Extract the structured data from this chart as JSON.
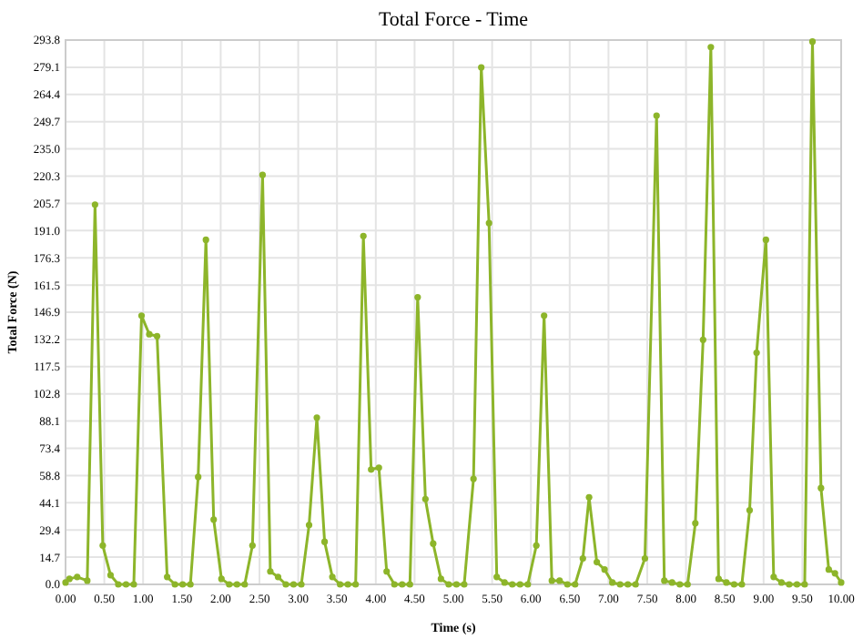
{
  "chart_data": {
    "type": "line",
    "title": "Total Force - Time",
    "xlabel": "Time (s)",
    "ylabel": "Total Force (N)",
    "x": [
      0,
      0.05,
      0.15,
      0.28,
      0.38,
      0.48,
      0.58,
      0.68,
      0.78,
      0.88,
      0.98,
      1.08,
      1.18,
      1.31,
      1.41,
      1.51,
      1.61,
      1.71,
      1.81,
      1.91,
      2.01,
      2.11,
      2.21,
      2.31,
      2.41,
      2.54,
      2.64,
      2.74,
      2.84,
      2.94,
      3.04,
      3.14,
      3.24,
      3.34,
      3.44,
      3.54,
      3.64,
      3.74,
      3.84,
      3.94,
      4.04,
      4.14,
      4.24,
      4.34,
      4.44,
      4.54,
      4.64,
      4.74,
      4.84,
      4.94,
      5.04,
      5.14,
      5.26,
      5.36,
      5.46,
      5.56,
      5.66,
      5.76,
      5.86,
      5.96,
      6.07,
      6.17,
      6.27,
      6.37,
      6.47,
      6.57,
      6.67,
      6.75,
      6.85,
      6.95,
      7.05,
      7.15,
      7.25,
      7.35,
      7.47,
      7.62,
      7.72,
      7.82,
      7.92,
      8.02,
      8.12,
      8.22,
      8.32,
      8.42,
      8.52,
      8.62,
      8.72,
      8.82,
      8.91,
      9.03,
      9.13,
      9.23,
      9.33,
      9.43,
      9.53,
      9.63,
      9.74,
      9.84,
      9.92,
      10
    ],
    "series": [
      {
        "color": "#8db52a",
        "values": [
          1,
          3,
          4,
          2,
          205,
          21,
          5,
          0,
          0,
          0,
          145,
          135,
          134,
          4,
          0,
          0,
          0,
          58,
          186,
          35,
          3,
          0,
          0,
          0,
          21,
          221,
          7,
          4,
          0,
          0,
          0,
          32,
          90,
          23,
          4,
          0,
          0,
          0,
          188,
          62,
          63,
          7,
          0,
          0,
          0,
          155,
          46,
          22,
          3,
          0,
          0,
          0,
          57,
          279,
          195,
          4,
          1,
          0,
          0,
          0,
          21,
          145,
          2,
          2,
          0,
          0,
          14,
          47,
          12,
          8,
          1,
          0,
          0,
          0,
          14,
          253,
          2,
          1,
          0,
          0,
          33,
          132,
          290,
          3,
          1,
          0,
          0,
          40,
          125,
          186,
          4,
          1,
          0,
          0,
          0,
          293,
          52,
          8,
          6,
          1
        ]
      }
    ],
    "xlim": [
      0,
      10
    ],
    "ylim": [
      0,
      293.8
    ],
    "xticks": [
      {
        "value": 0,
        "label": "0.00"
      },
      {
        "value": 0.5,
        "label": "0.50"
      },
      {
        "value": 1,
        "label": "1.00"
      },
      {
        "value": 1.5,
        "label": "1.50"
      },
      {
        "value": 2,
        "label": "2.00"
      },
      {
        "value": 2.5,
        "label": "2.50"
      },
      {
        "value": 3,
        "label": "3.00"
      },
      {
        "value": 3.5,
        "label": "3.50"
      },
      {
        "value": 4,
        "label": "4.00"
      },
      {
        "value": 4.5,
        "label": "4.50"
      },
      {
        "value": 5,
        "label": "5.00"
      },
      {
        "value": 5.5,
        "label": "5.50"
      },
      {
        "value": 6,
        "label": "6.00"
      },
      {
        "value": 6.5,
        "label": "6.50"
      },
      {
        "value": 7,
        "label": "7.00"
      },
      {
        "value": 7.5,
        "label": "7.50"
      },
      {
        "value": 8,
        "label": "8.00"
      },
      {
        "value": 8.5,
        "label": "8.50"
      },
      {
        "value": 9,
        "label": "9.00"
      },
      {
        "value": 9.5,
        "label": "9.50"
      },
      {
        "value": 10,
        "label": "10.00"
      }
    ],
    "yticks": [
      {
        "value": 0,
        "label": "0.0"
      },
      {
        "value": 14.69,
        "label": "14.7"
      },
      {
        "value": 29.38,
        "label": "29.4"
      },
      {
        "value": 44.07,
        "label": "44.1"
      },
      {
        "value": 58.76,
        "label": "58.8"
      },
      {
        "value": 73.45,
        "label": "73.4"
      },
      {
        "value": 88.14,
        "label": "88.1"
      },
      {
        "value": 102.83,
        "label": "102.8"
      },
      {
        "value": 117.52,
        "label": "117.5"
      },
      {
        "value": 132.21,
        "label": "132.2"
      },
      {
        "value": 146.9,
        "label": "146.9"
      },
      {
        "value": 161.5,
        "label": "161.5"
      },
      {
        "value": 176.28,
        "label": "176.3"
      },
      {
        "value": 190.97,
        "label": "191.0"
      },
      {
        "value": 205.66,
        "label": "205.7"
      },
      {
        "value": 220.35,
        "label": "220.3"
      },
      {
        "value": 235.04,
        "label": "235.0"
      },
      {
        "value": 249.73,
        "label": "249.7"
      },
      {
        "value": 264.42,
        "label": "264.4"
      },
      {
        "value": 279.11,
        "label": "279.1"
      },
      {
        "value": 293.8,
        "label": "293.8"
      }
    ],
    "grid": true,
    "marker": "circle",
    "line_style": "solid"
  }
}
